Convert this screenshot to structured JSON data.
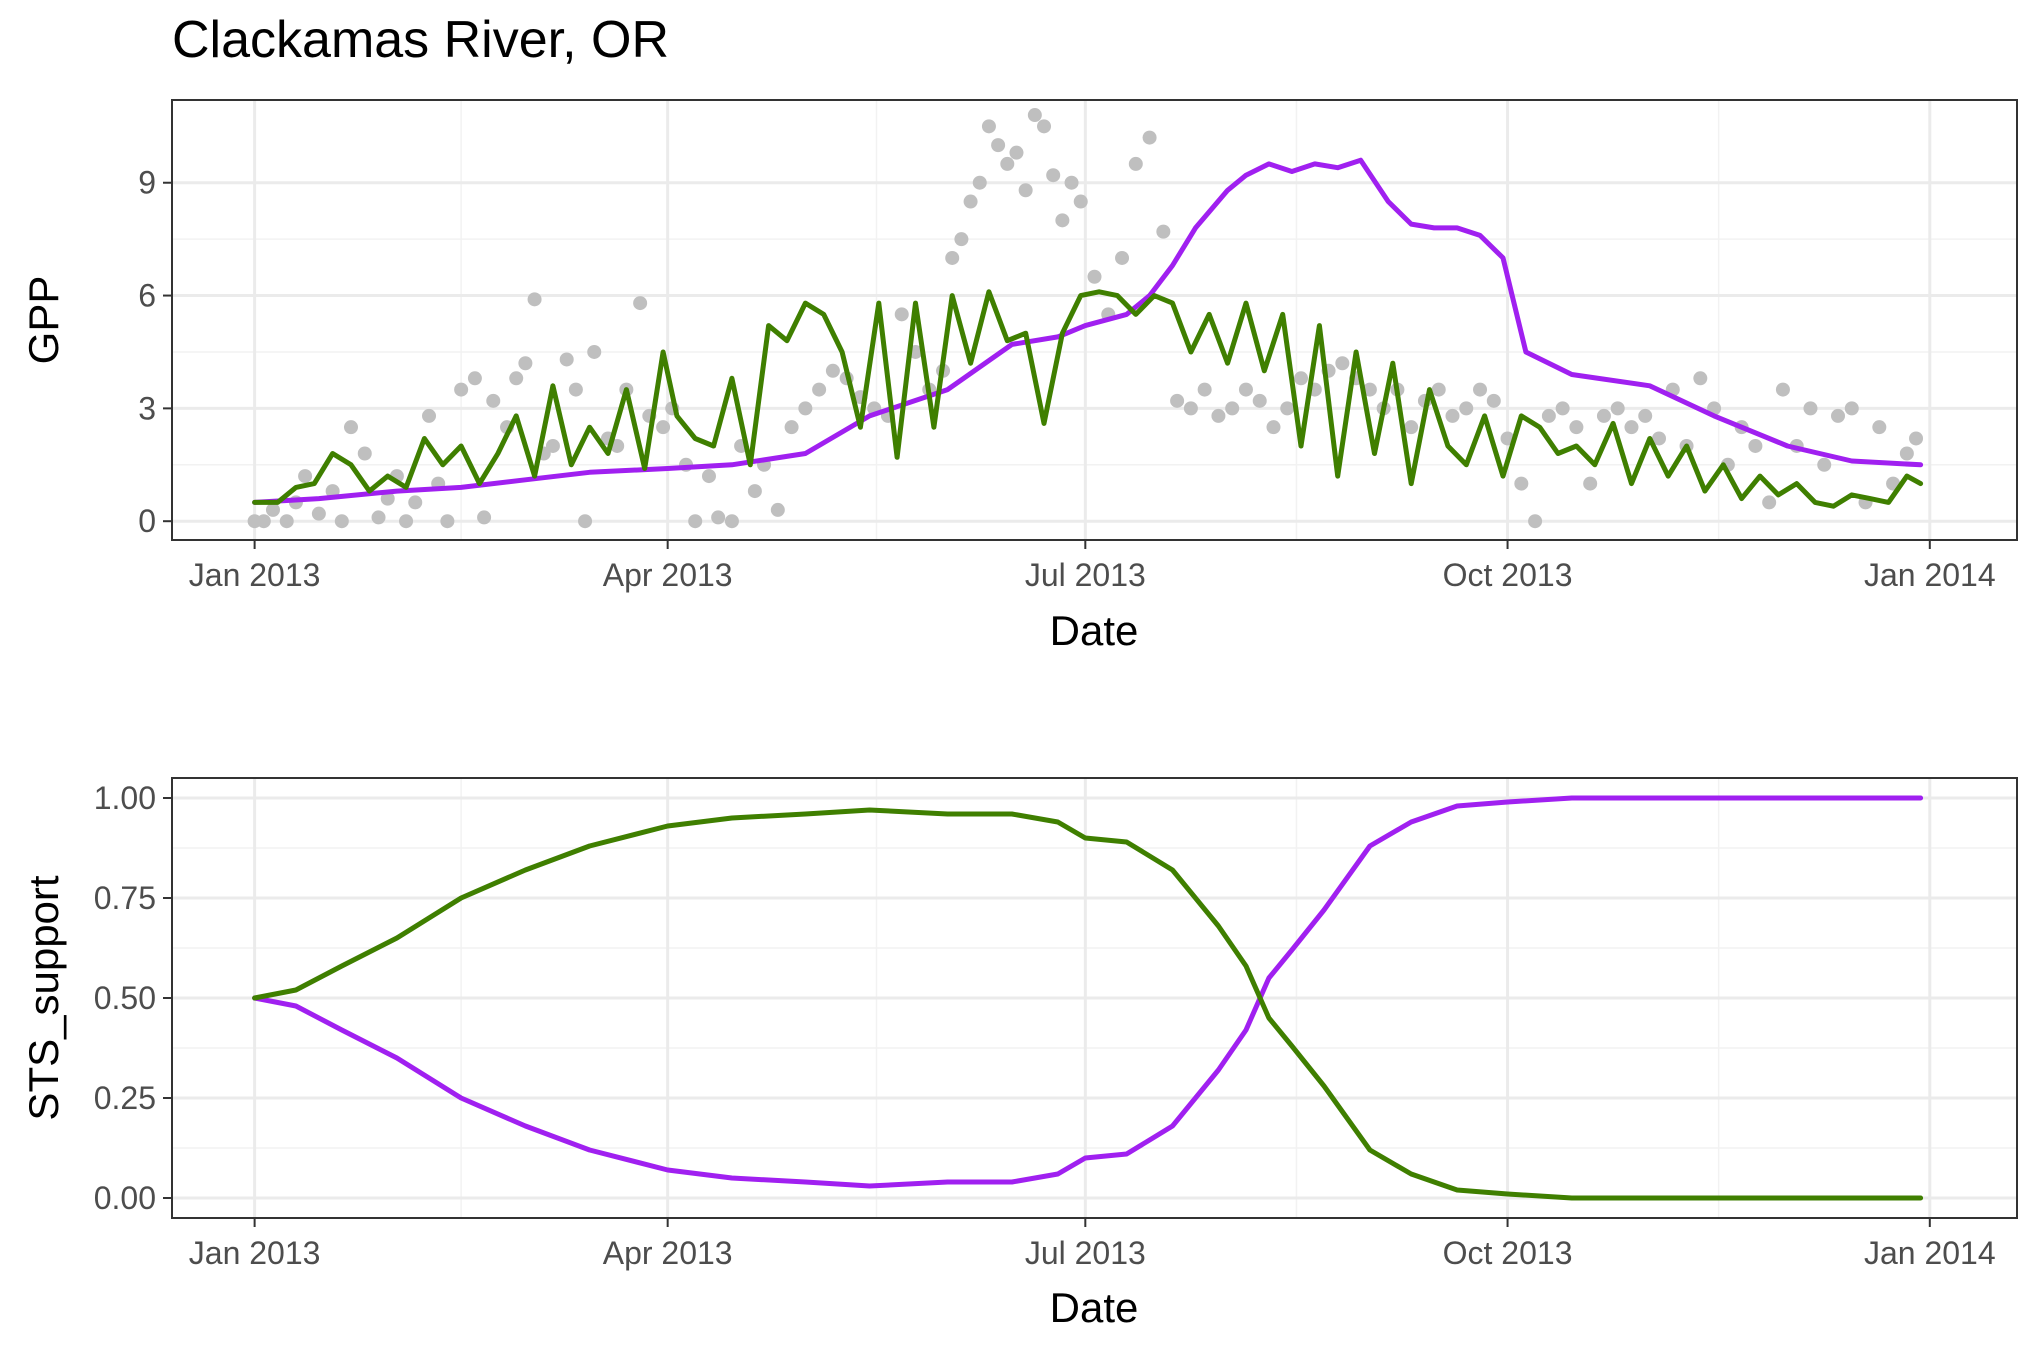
{
  "chart_data": [
    {
      "type": "line",
      "title": "Clackamas River, OR",
      "xlabel": "Date",
      "ylabel": "GPP",
      "x_ticks": [
        "Jan 2013",
        "Apr 2013",
        "Jul 2013",
        "Oct 2013",
        "Jan 2014"
      ],
      "y_ticks": [
        "0",
        "3",
        "6",
        "9"
      ],
      "xlim": [
        "2012-12-14",
        "2014-01-20"
      ],
      "ylim": [
        -0.5,
        11.2
      ],
      "grid": true,
      "legend": "none",
      "colors": {
        "points": "#bfbfbf",
        "purple": "#a020f0",
        "green": "#3f7f00"
      },
      "points": {
        "x": [
          "2013-01-01",
          "2013-01-03",
          "2013-01-05",
          "2013-01-08",
          "2013-01-10",
          "2013-01-12",
          "2013-01-15",
          "2013-01-18",
          "2013-01-20",
          "2013-01-22",
          "2013-01-25",
          "2013-01-28",
          "2013-01-30",
          "2013-02-01",
          "2013-02-03",
          "2013-02-05",
          "2013-02-08",
          "2013-02-10",
          "2013-02-12",
          "2013-02-15",
          "2013-02-18",
          "2013-02-20",
          "2013-02-22",
          "2013-02-25",
          "2013-02-27",
          "2013-03-01",
          "2013-03-03",
          "2013-03-05",
          "2013-03-07",
          "2013-03-10",
          "2013-03-12",
          "2013-03-14",
          "2013-03-16",
          "2013-03-19",
          "2013-03-21",
          "2013-03-23",
          "2013-03-26",
          "2013-03-28",
          "2013-03-31",
          "2013-04-02",
          "2013-04-05",
          "2013-04-07",
          "2013-04-10",
          "2013-04-12",
          "2013-04-15",
          "2013-04-17",
          "2013-04-20",
          "2013-04-22",
          "2013-04-25",
          "2013-04-28",
          "2013-05-01",
          "2013-05-04",
          "2013-05-07",
          "2013-05-10",
          "2013-05-13",
          "2013-05-16",
          "2013-05-19",
          "2013-05-22",
          "2013-05-25",
          "2013-05-28",
          "2013-05-31",
          "2013-06-02",
          "2013-06-04",
          "2013-06-06",
          "2013-06-08",
          "2013-06-10",
          "2013-06-12",
          "2013-06-14",
          "2013-06-16",
          "2013-06-18",
          "2013-06-20",
          "2013-06-22",
          "2013-06-24",
          "2013-06-26",
          "2013-06-28",
          "2013-06-30",
          "2013-07-03",
          "2013-07-06",
          "2013-07-09",
          "2013-07-12",
          "2013-07-15",
          "2013-07-18",
          "2013-07-21",
          "2013-07-24",
          "2013-07-27",
          "2013-07-30",
          "2013-08-02",
          "2013-08-05",
          "2013-08-08",
          "2013-08-11",
          "2013-08-14",
          "2013-08-17",
          "2013-08-20",
          "2013-08-23",
          "2013-08-26",
          "2013-08-29",
          "2013-09-01",
          "2013-09-04",
          "2013-09-07",
          "2013-09-10",
          "2013-09-13",
          "2013-09-16",
          "2013-09-19",
          "2013-09-22",
          "2013-09-25",
          "2013-09-28",
          "2013-10-01",
          "2013-10-04",
          "2013-10-07",
          "2013-10-10",
          "2013-10-13",
          "2013-10-16",
          "2013-10-19",
          "2013-10-22",
          "2013-10-25",
          "2013-10-28",
          "2013-10-31",
          "2013-11-03",
          "2013-11-06",
          "2013-11-09",
          "2013-11-12",
          "2013-11-15",
          "2013-11-18",
          "2013-11-21",
          "2013-11-24",
          "2013-11-27",
          "2013-11-30",
          "2013-12-03",
          "2013-12-06",
          "2013-12-09",
          "2013-12-12",
          "2013-12-15",
          "2013-12-18",
          "2013-12-21",
          "2013-12-24",
          "2013-12-27",
          "2013-12-29"
        ],
        "y": [
          0.0,
          0.0,
          0.3,
          0.0,
          0.5,
          1.2,
          0.2,
          0.8,
          0.0,
          2.5,
          1.8,
          0.1,
          0.6,
          1.2,
          0.0,
          0.5,
          2.8,
          1.0,
          0.0,
          3.5,
          3.8,
          0.1,
          3.2,
          2.5,
          3.8,
          4.2,
          5.9,
          1.8,
          2.0,
          4.3,
          3.5,
          0.0,
          4.5,
          2.2,
          2.0,
          3.5,
          5.8,
          2.8,
          2.5,
          3.0,
          1.5,
          0.0,
          1.2,
          0.1,
          0.0,
          2.0,
          0.8,
          1.5,
          0.3,
          2.5,
          3.0,
          3.5,
          4.0,
          3.8,
          3.3,
          3.0,
          2.8,
          5.5,
          4.5,
          3.5,
          4.0,
          7.0,
          7.5,
          8.5,
          9.0,
          10.5,
          10.0,
          9.5,
          9.8,
          8.8,
          10.8,
          10.5,
          9.2,
          8.0,
          9.0,
          8.5,
          6.5,
          5.5,
          7.0,
          9.5,
          10.2,
          7.7,
          3.2,
          3.0,
          3.5,
          2.8,
          3.0,
          3.5,
          3.2,
          2.5,
          3.0,
          3.8,
          3.5,
          4.0,
          4.2,
          3.8,
          3.5,
          3.0,
          3.5,
          2.5,
          3.2,
          3.5,
          2.8,
          3.0,
          3.5,
          3.2,
          2.2,
          1.0,
          0.0,
          2.8,
          3.0,
          2.5,
          1.0,
          2.8,
          3.0,
          2.5,
          2.8,
          2.2,
          3.5,
          2.0,
          3.8,
          3.0,
          1.5,
          2.5,
          2.0,
          0.5,
          3.5,
          2.0,
          3.0,
          1.5,
          2.8,
          3.0,
          0.5,
          2.5,
          1.0,
          1.8,
          2.2
        ],
        "note_x_unused": null
      },
      "series": [
        {
          "x": [
            "2013-01-01",
            "2013-01-15",
            "2013-02-01",
            "2013-02-15",
            "2013-03-01",
            "2013-03-15",
            "2013-04-01",
            "2013-04-15",
            "2013-05-01",
            "2013-05-15",
            "2013-06-01",
            "2013-06-15",
            "2013-06-25",
            "2013-07-01",
            "2013-07-10",
            "2013-07-15",
            "2013-07-20",
            "2013-07-25",
            "2013-08-01",
            "2013-08-05",
            "2013-08-10",
            "2013-08-15",
            "2013-08-20",
            "2013-08-25",
            "2013-08-30",
            "2013-09-05",
            "2013-09-10",
            "2013-09-15",
            "2013-09-20",
            "2013-09-25",
            "2013-09-30",
            "2013-10-05",
            "2013-10-15",
            "2013-11-01",
            "2013-11-15",
            "2013-12-01",
            "2013-12-15",
            "2013-12-30"
          ],
          "y": [
            0.5,
            0.6,
            0.8,
            0.9,
            1.1,
            1.3,
            1.4,
            1.5,
            1.8,
            2.8,
            3.5,
            4.7,
            4.9,
            5.2,
            5.5,
            6.0,
            6.8,
            7.8,
            8.8,
            9.2,
            9.5,
            9.3,
            9.5,
            9.4,
            9.6,
            8.5,
            7.9,
            7.8,
            7.8,
            7.6,
            7.0,
            4.5,
            3.9,
            3.6,
            2.8,
            2.0,
            1.6,
            1.5
          ]
        },
        {
          "x": [
            "2013-01-01",
            "2013-01-06",
            "2013-01-10",
            "2013-01-14",
            "2013-01-18",
            "2013-01-22",
            "2013-01-26",
            "2013-01-30",
            "2013-02-03",
            "2013-02-07",
            "2013-02-11",
            "2013-02-15",
            "2013-02-19",
            "2013-02-23",
            "2013-02-27",
            "2013-03-03",
            "2013-03-07",
            "2013-03-11",
            "2013-03-15",
            "2013-03-19",
            "2013-03-23",
            "2013-03-27",
            "2013-03-31",
            "2013-04-03",
            "2013-04-07",
            "2013-04-11",
            "2013-04-15",
            "2013-04-19",
            "2013-04-23",
            "2013-04-27",
            "2013-05-01",
            "2013-05-05",
            "2013-05-09",
            "2013-05-13",
            "2013-05-17",
            "2013-05-21",
            "2013-05-25",
            "2013-05-29",
            "2013-06-02",
            "2013-06-06",
            "2013-06-10",
            "2013-06-14",
            "2013-06-18",
            "2013-06-22",
            "2013-06-26",
            "2013-06-30",
            "2013-07-04",
            "2013-07-08",
            "2013-07-12",
            "2013-07-16",
            "2013-07-20",
            "2013-07-24",
            "2013-07-28",
            "2013-08-01",
            "2013-08-05",
            "2013-08-09",
            "2013-08-13",
            "2013-08-17",
            "2013-08-21",
            "2013-08-25",
            "2013-08-29",
            "2013-09-02",
            "2013-09-06",
            "2013-09-10",
            "2013-09-14",
            "2013-09-18",
            "2013-09-22",
            "2013-09-26",
            "2013-09-30",
            "2013-10-04",
            "2013-10-08",
            "2013-10-12",
            "2013-10-16",
            "2013-10-20",
            "2013-10-24",
            "2013-10-28",
            "2013-11-01",
            "2013-11-05",
            "2013-11-09",
            "2013-11-13",
            "2013-11-17",
            "2013-11-21",
            "2013-11-25",
            "2013-11-29",
            "2013-12-03",
            "2013-12-07",
            "2013-12-11",
            "2013-12-15",
            "2013-12-19",
            "2013-12-23",
            "2013-12-27",
            "2013-12-30"
          ],
          "y": [
            0.5,
            0.5,
            0.9,
            1.0,
            1.8,
            1.5,
            0.8,
            1.2,
            0.9,
            2.2,
            1.5,
            2.0,
            1.0,
            1.8,
            2.8,
            1.2,
            3.6,
            1.5,
            2.5,
            1.8,
            3.5,
            1.4,
            4.5,
            2.8,
            2.2,
            2.0,
            3.8,
            1.5,
            5.2,
            4.8,
            5.8,
            5.5,
            4.5,
            2.5,
            5.8,
            1.7,
            5.8,
            2.5,
            6.0,
            4.2,
            6.1,
            4.8,
            5.0,
            2.6,
            5.0,
            6.0,
            6.1,
            6.0,
            5.5,
            6.0,
            5.8,
            4.5,
            5.5,
            4.2,
            5.8,
            4.0,
            5.5,
            2.0,
            5.2,
            1.2,
            4.5,
            1.8,
            4.2,
            1.0,
            3.5,
            2.0,
            1.5,
            2.8,
            1.2,
            2.8,
            2.5,
            1.8,
            2.0,
            1.5,
            2.6,
            1.0,
            2.2,
            1.2,
            2.0,
            0.8,
            1.5,
            0.6,
            1.2,
            0.7,
            1.0,
            0.5,
            0.4,
            0.7,
            0.6,
            0.5,
            1.2,
            1.0
          ]
        }
      ]
    },
    {
      "type": "line",
      "title": "",
      "xlabel": "Date",
      "ylabel": "STS_support",
      "x_ticks": [
        "Jan 2013",
        "Apr 2013",
        "Jul 2013",
        "Oct 2013",
        "Jan 2014"
      ],
      "y_ticks": [
        "0.00",
        "0.25",
        "0.50",
        "0.75",
        "1.00"
      ],
      "xlim": [
        "2012-12-14",
        "2014-01-20"
      ],
      "ylim": [
        -0.05,
        1.05
      ],
      "grid": true,
      "legend": "none",
      "colors": {
        "purple": "#a020f0",
        "green": "#3f7f00"
      },
      "series": [
        {
          "x": [
            "2013-01-01",
            "2013-01-10",
            "2013-01-20",
            "2013-02-01",
            "2013-02-15",
            "2013-03-01",
            "2013-03-15",
            "2013-04-01",
            "2013-04-15",
            "2013-05-01",
            "2013-05-15",
            "2013-06-01",
            "2013-06-15",
            "2013-06-25",
            "2013-07-01",
            "2013-07-10",
            "2013-07-20",
            "2013-07-30",
            "2013-08-05",
            "2013-08-10",
            "2013-08-15",
            "2013-08-22",
            "2013-09-01",
            "2013-09-10",
            "2013-09-20",
            "2013-10-01",
            "2013-10-15",
            "2013-11-01",
            "2013-12-01",
            "2013-12-30"
          ],
          "y": [
            0.5,
            0.48,
            0.42,
            0.35,
            0.25,
            0.18,
            0.12,
            0.07,
            0.05,
            0.04,
            0.03,
            0.04,
            0.04,
            0.06,
            0.1,
            0.11,
            0.18,
            0.32,
            0.42,
            0.55,
            0.62,
            0.72,
            0.88,
            0.94,
            0.98,
            0.99,
            1.0,
            1.0,
            1.0,
            1.0
          ]
        },
        {
          "x": [
            "2013-01-01",
            "2013-01-10",
            "2013-01-20",
            "2013-02-01",
            "2013-02-15",
            "2013-03-01",
            "2013-03-15",
            "2013-04-01",
            "2013-04-15",
            "2013-05-01",
            "2013-05-15",
            "2013-06-01",
            "2013-06-15",
            "2013-06-25",
            "2013-07-01",
            "2013-07-10",
            "2013-07-20",
            "2013-07-30",
            "2013-08-05",
            "2013-08-10",
            "2013-08-15",
            "2013-08-22",
            "2013-09-01",
            "2013-09-10",
            "2013-09-20",
            "2013-10-01",
            "2013-10-15",
            "2013-11-01",
            "2013-12-01",
            "2013-12-30"
          ],
          "y": [
            0.5,
            0.52,
            0.58,
            0.65,
            0.75,
            0.82,
            0.88,
            0.93,
            0.95,
            0.96,
            0.97,
            0.96,
            0.96,
            0.94,
            0.9,
            0.89,
            0.82,
            0.68,
            0.58,
            0.45,
            0.38,
            0.28,
            0.12,
            0.06,
            0.02,
            0.01,
            0.0,
            0.0,
            0.0,
            0.0
          ]
        }
      ]
    }
  ]
}
